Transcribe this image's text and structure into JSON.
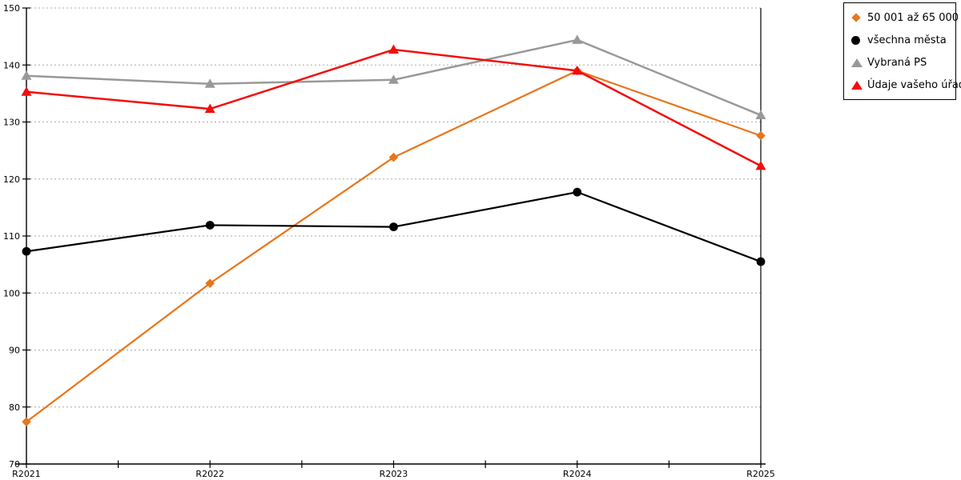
{
  "chart": {
    "background": "#ffffff",
    "axis_color": "#000000",
    "grid_color": "#aaaaaa",
    "legend_border_color": "#000000"
  },
  "chart_data": {
    "type": "line",
    "title": "",
    "xlabel": "",
    "ylabel": "",
    "categories": [
      "R2021",
      "R2022",
      "R2023",
      "R2024",
      "R2025"
    ],
    "series": [
      {
        "name": "50 001 až 65 000",
        "color": "#e8751a",
        "marker": "diamond",
        "values": [
          77.4,
          101.7,
          123.8,
          139.0,
          127.6
        ]
      },
      {
        "name": "všechna města",
        "color": "#000000",
        "marker": "circle",
        "values": [
          107.3,
          111.9,
          111.6,
          117.7,
          105.5
        ]
      },
      {
        "name": "Vybraná PS",
        "color": "#999999",
        "marker": "triangle",
        "values": [
          138.1,
          136.7,
          137.4,
          144.4,
          131.2
        ]
      },
      {
        "name": "Údaje vašeho úřadu",
        "color": "#f20d0d",
        "marker": "triangle",
        "values": [
          135.3,
          132.3,
          142.7,
          139.0,
          122.3
        ]
      }
    ],
    "ylim": [
      70,
      150
    ],
    "y_ticks": [
      70,
      80,
      90,
      100,
      110,
      120,
      130,
      140,
      150
    ],
    "x_minor_ticks_per_interval": 1,
    "grid": true,
    "grid_style": "dotted",
    "legend_position": "top-right-outside"
  }
}
